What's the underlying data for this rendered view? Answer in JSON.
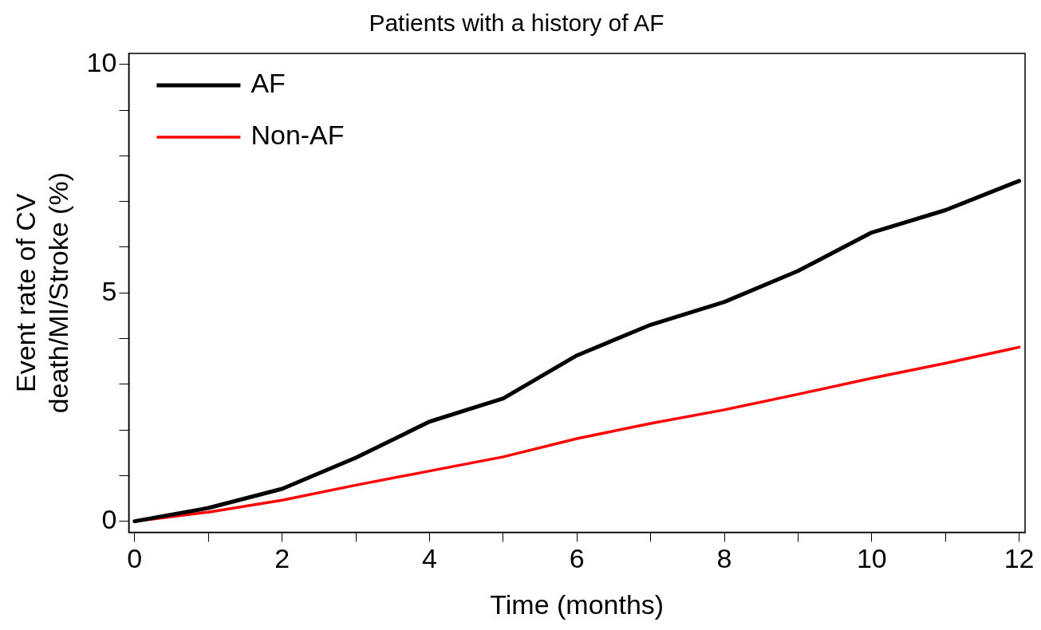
{
  "chart_data": {
    "type": "line",
    "title": "Patients with a history of AF",
    "xlabel": "Time (months)",
    "ylabel": "Event rate of CV death/MI/Stroke (%)",
    "x": [
      0,
      1,
      2,
      3,
      4,
      5,
      6,
      7,
      8,
      9,
      10,
      11,
      12
    ],
    "series": [
      {
        "name": "AF",
        "color": "#000000",
        "values": [
          0,
          0.29,
          0.71,
          1.39,
          2.18,
          2.69,
          3.63,
          4.3,
          4.8,
          5.48,
          6.32,
          6.81,
          7.45
        ]
      },
      {
        "name": "Non-AF",
        "color": "#ff0000",
        "values": [
          0,
          0.2,
          0.46,
          0.79,
          1.1,
          1.41,
          1.81,
          2.14,
          2.44,
          2.78,
          3.13,
          3.46,
          3.81
        ]
      }
    ],
    "xlim": [
      -0.08,
      12.08
    ],
    "ylim": [
      -0.24,
      10.24
    ],
    "xticks": [
      0,
      {
        "value": 1,
        "label": null
      },
      2,
      {
        "value": 3,
        "label": null
      },
      4,
      {
        "value": 5,
        "label": null
      },
      6,
      {
        "value": 7,
        "label": null
      },
      8,
      {
        "value": 9,
        "label": null
      },
      10,
      {
        "value": 11,
        "label": null
      },
      12
    ],
    "yticks": [
      0,
      {
        "value": 1,
        "label": null
      },
      {
        "value": 2,
        "label": null
      },
      {
        "value": 3,
        "label": null
      },
      {
        "value": 4,
        "label": null
      },
      5,
      {
        "value": 6,
        "label": null
      },
      {
        "value": 7,
        "label": null
      },
      {
        "value": 8,
        "label": null
      },
      {
        "value": 9,
        "label": null
      },
      10
    ],
    "grid": false,
    "legend": "top left",
    "marker": "none",
    "line_style": "solid"
  }
}
